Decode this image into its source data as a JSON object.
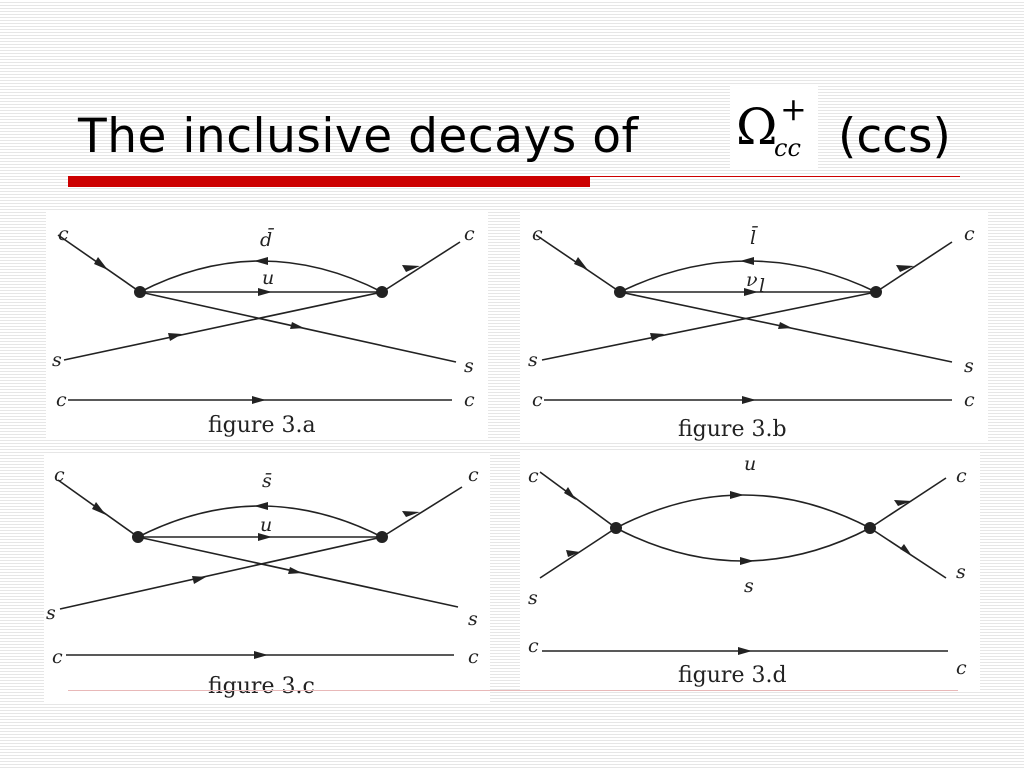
{
  "slide": {
    "title": "The inclusive decays of",
    "symbol": {
      "base": "Ω",
      "superscript": "+",
      "subscript": "cc"
    },
    "title_suffix": "(ccs)"
  },
  "figures": {
    "a": {
      "caption": "figure 3.a",
      "labels": {
        "top_left": "c",
        "top_right": "c",
        "mid_left": "s",
        "mid_right": "s",
        "bottom_left": "c",
        "bottom_right": "c",
        "arc": "d̄",
        "straight": "u"
      }
    },
    "b": {
      "caption": "figure 3.b",
      "labels": {
        "top_left": "c",
        "top_right": "c",
        "mid_left": "s",
        "mid_right": "s",
        "bottom_left": "c",
        "bottom_right": "c",
        "arc": "l̄",
        "straight": "ν",
        "straight_sub": "l"
      }
    },
    "c": {
      "caption": "figure 3.c",
      "labels": {
        "top_left": "c",
        "top_right": "c",
        "mid_left": "s",
        "mid_right": "s",
        "bottom_left": "c",
        "bottom_right": "c",
        "arc": "s̄",
        "straight": "u"
      }
    },
    "d": {
      "caption": "figure 3.d",
      "labels": {
        "top_left": "c",
        "top_right": "c",
        "mid_left": "s",
        "mid_right": "s",
        "bottom_left": "c",
        "bottom_right": "c",
        "upper_arc": "u",
        "lower_arc": "s"
      }
    }
  }
}
